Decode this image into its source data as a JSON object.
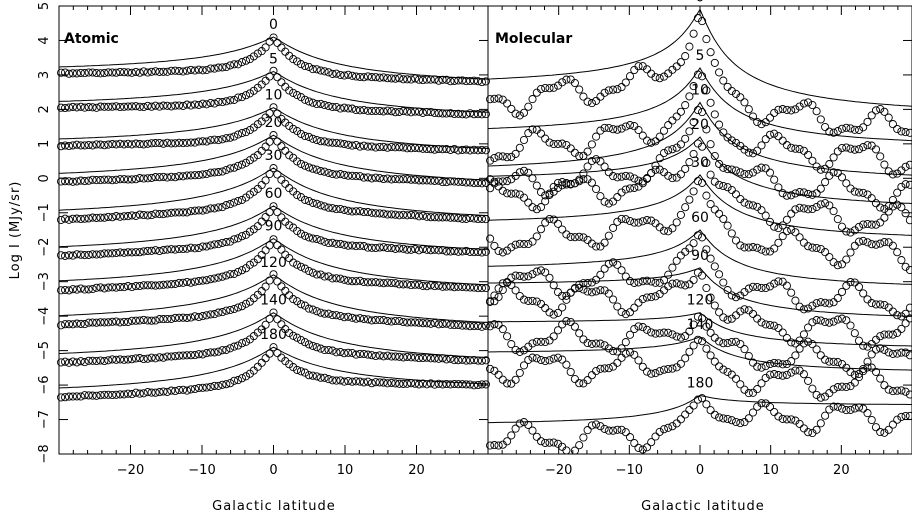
{
  "chart_data": [
    {
      "type": "scatter",
      "title": "Atomic",
      "xlabel": "Galactic latitude",
      "ylabel": "Log I (MJy/sr)",
      "xlim": [
        -30,
        30
      ],
      "ylim": [
        -8,
        5
      ],
      "xticks": [
        -20,
        -10,
        0,
        10,
        20
      ],
      "yticks": [
        -8,
        -7,
        -6,
        -5,
        -4,
        -3,
        -2,
        -1,
        0,
        1,
        2,
        3,
        4,
        5
      ],
      "series": [
        {
          "name": "0",
          "peak": 4.1,
          "left_end": 3.05,
          "right_end": 2.8
        },
        {
          "name": "5",
          "peak": 3.1,
          "left_end": 2.05,
          "right_end": 1.85
        },
        {
          "name": "10",
          "peak": 2.05,
          "left_end": 0.95,
          "right_end": 0.8
        },
        {
          "name": "20",
          "peak": 1.25,
          "left_end": -0.1,
          "right_end": -0.15
        },
        {
          "name": "30",
          "peak": 0.3,
          "left_end": -1.2,
          "right_end": -1.2
        },
        {
          "name": "60",
          "peak": -0.8,
          "left_end": -2.25,
          "right_end": -2.15
        },
        {
          "name": "90",
          "peak": -1.75,
          "left_end": -3.25,
          "right_end": -3.2
        },
        {
          "name": "120",
          "peak": -2.8,
          "left_end": -4.25,
          "right_end": -4.3
        },
        {
          "name": "140",
          "peak": -3.9,
          "left_end": -5.35,
          "right_end": -5.3
        },
        {
          "name": "180",
          "peak": -4.9,
          "left_end": -6.35,
          "right_end": -6.0
        }
      ]
    },
    {
      "type": "scatter",
      "title": "Molecular",
      "xlabel": "Galactic latitude",
      "ylabel": "",
      "xlim": [
        -30,
        30
      ],
      "ylim": [
        -8,
        5
      ],
      "xticks": [
        -20,
        -10,
        0,
        10,
        20
      ],
      "yticks": [
        -8,
        -7,
        -6,
        -5,
        -4,
        -3,
        -2,
        -1,
        0,
        1,
        2,
        3,
        4,
        5
      ],
      "series": [
        {
          "name": "0",
          "peak": 4.9,
          "left_end": 2.2,
          "right_end": 1.4
        },
        {
          "name": "5",
          "peak": 3.2,
          "left_end": 0.8,
          "right_end": 0.5
        },
        {
          "name": "10",
          "peak": 2.2,
          "left_end": -0.3,
          "right_end": -0.5
        },
        {
          "name": "20",
          "peak": 1.2,
          "left_end": -0.5,
          "right_end": -1.3
        },
        {
          "name": "30",
          "peak": 0.1,
          "left_end": -1.8,
          "right_end": -2.2
        },
        {
          "name": "60",
          "peak": -1.5,
          "left_end": -3.1,
          "right_end": -3.6
        },
        {
          "name": "90",
          "peak": -2.6,
          "left_end": -3.5,
          "right_end": -4.5
        },
        {
          "name": "120",
          "peak": -3.9,
          "left_end": -4.6,
          "right_end": -5.3
        },
        {
          "name": "140",
          "peak": -4.6,
          "left_end": -5.5,
          "right_end": -6.0
        },
        {
          "name": "180",
          "peak": -6.3,
          "left_end": -7.6,
          "right_end": -6.9
        }
      ]
    }
  ]
}
